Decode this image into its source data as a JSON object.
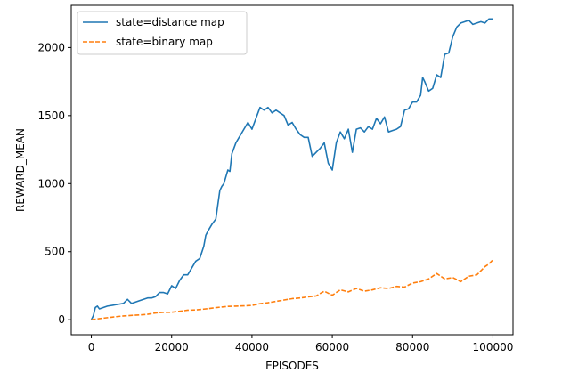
{
  "chart_data": {
    "type": "line",
    "xlabel": "EPISODES",
    "ylabel": "REWARD_MEAN",
    "xlim": [
      -5000,
      105000
    ],
    "ylim": [
      -110,
      2310
    ],
    "xticks": [
      0,
      20000,
      40000,
      60000,
      80000,
      100000
    ],
    "xtick_labels": [
      "0",
      "20000",
      "40000",
      "60000",
      "80000",
      "100000"
    ],
    "yticks": [
      0,
      500,
      1000,
      1500,
      2000
    ],
    "ytick_labels": [
      "0",
      "500",
      "1000",
      "1500",
      "2000"
    ],
    "grid": false,
    "legend": "top-left",
    "series": [
      {
        "name": "state=distance map",
        "color": "#1f77b4",
        "dash": "solid",
        "x": [
          0,
          500,
          1000,
          1500,
          2000,
          4000,
          6000,
          8000,
          9000,
          10000,
          12000,
          14000,
          15000,
          16000,
          17000,
          18000,
          19000,
          20000,
          21000,
          22000,
          23000,
          24000,
          25000,
          26000,
          27000,
          28000,
          28500,
          29000,
          30000,
          31000,
          32000,
          32500,
          33000,
          34000,
          34500,
          35000,
          36000,
          37000,
          38000,
          39000,
          40000,
          41000,
          42000,
          43000,
          44000,
          45000,
          46000,
          47000,
          48000,
          49000,
          50000,
          51000,
          52000,
          53000,
          54000,
          55000,
          56000,
          57000,
          58000,
          59000,
          60000,
          61000,
          62000,
          63000,
          64000,
          65000,
          66000,
          67000,
          68000,
          69000,
          70000,
          71000,
          72000,
          73000,
          74000,
          75000,
          76000,
          77000,
          78000,
          79000,
          80000,
          81000,
          82000,
          82500,
          83000,
          84000,
          85000,
          86000,
          87000,
          88000,
          89000,
          90000,
          91000,
          92000,
          93000,
          94000,
          95000,
          96000,
          97000,
          98000,
          99000,
          100000
        ],
        "y": [
          0,
          30,
          90,
          100,
          80,
          100,
          110,
          120,
          150,
          120,
          140,
          160,
          160,
          170,
          200,
          200,
          190,
          250,
          230,
          290,
          330,
          330,
          380,
          430,
          450,
          540,
          620,
          650,
          700,
          740,
          950,
          980,
          1000,
          1100,
          1090,
          1220,
          1300,
          1350,
          1400,
          1450,
          1400,
          1480,
          1560,
          1540,
          1560,
          1520,
          1540,
          1520,
          1500,
          1430,
          1450,
          1400,
          1360,
          1340,
          1340,
          1200,
          1230,
          1260,
          1300,
          1150,
          1100,
          1300,
          1380,
          1330,
          1400,
          1230,
          1400,
          1410,
          1380,
          1420,
          1400,
          1480,
          1440,
          1490,
          1380,
          1390,
          1400,
          1420,
          1540,
          1550,
          1600,
          1600,
          1650,
          1780,
          1750,
          1680,
          1700,
          1800,
          1780,
          1950,
          1960,
          2080,
          2150,
          2180,
          2190,
          2200,
          2170,
          2180,
          2190,
          2180,
          2210,
          2210
        ]
      },
      {
        "name": "state=binary map",
        "color": "#ff7f0e",
        "dash": "dashed",
        "x": [
          0,
          2000,
          4000,
          6000,
          8000,
          10000,
          12000,
          14000,
          16000,
          18000,
          20000,
          22000,
          24000,
          26000,
          28000,
          30000,
          32000,
          34000,
          36000,
          38000,
          40000,
          42000,
          44000,
          46000,
          48000,
          50000,
          52000,
          54000,
          56000,
          58000,
          60000,
          62000,
          64000,
          66000,
          68000,
          70000,
          72000,
          74000,
          76000,
          78000,
          80000,
          82000,
          84000,
          86000,
          88000,
          90000,
          92000,
          94000,
          96000,
          98000,
          99000,
          100000
        ],
        "y": [
          0,
          8,
          15,
          22,
          28,
          32,
          35,
          40,
          50,
          55,
          55,
          62,
          70,
          72,
          78,
          85,
          92,
          98,
          100,
          102,
          105,
          118,
          125,
          135,
          145,
          155,
          160,
          168,
          175,
          210,
          180,
          220,
          205,
          230,
          210,
          220,
          235,
          230,
          245,
          240,
          270,
          280,
          300,
          340,
          300,
          310,
          280,
          320,
          330,
          390,
          410,
          440
        ]
      }
    ]
  }
}
